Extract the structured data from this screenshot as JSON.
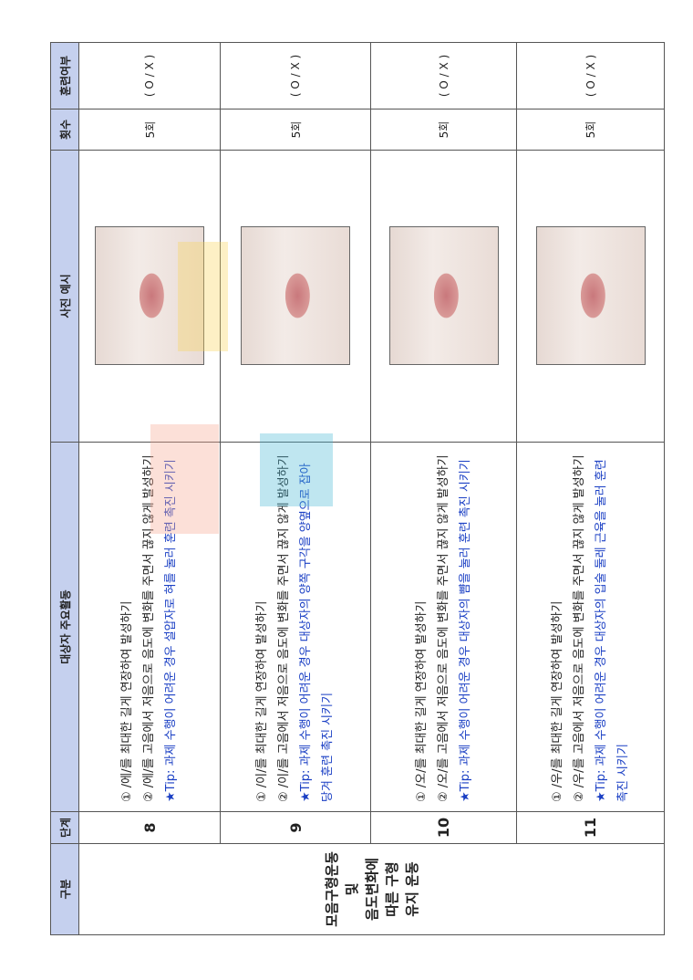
{
  "table": {
    "header": [
      "구분",
      "단계",
      "대상자 주요활동",
      "사진 예시",
      "횟수",
      "훈련여부"
    ],
    "category": [
      "모음구형운동",
      "및",
      "음도변화에",
      "따른 구형",
      "유지 운동"
    ],
    "rows": [
      {
        "step": "8",
        "lines": [
          "① /에/를 최대한 길게 연장하여 발성하기",
          "② /에/를 고음에서 저음으로 음도에 변화를 주면서 끊지 않게 발성하기"
        ],
        "tip": "★Tip: 과제 수행이 어려운 경우 설압자로 혀를 눌러 훈련 촉진 시키기",
        "count": "5회",
        "check": "( O / X )"
      },
      {
        "step": "9",
        "lines": [
          "① /이/를 최대한 길게 연장하여 발성하기",
          "② /이/를 고음에서 저음으로 음도에 변화를 주면서 끊지 않게 발성하기"
        ],
        "tip": "★Tip: 과제 수행이 어려운 경우 대상자의 양쪽 구각을 양옆으로 잡아 당겨 훈련 촉진 시키기",
        "count": "5회",
        "check": "( O / X )"
      },
      {
        "step": "10",
        "lines": [
          "① /오/를 최대한 길게 연장하여 발성하기",
          "② /오/를 고음에서 저음으로 음도에 변화를 주면서 끊지 않게 발성하기"
        ],
        "tip": "★Tip: 과제 수행이 어려운 경우 대상자의 뺨을 눌러 훈련 촉진 시키기",
        "count": "5회",
        "check": "( O / X )"
      },
      {
        "step": "11",
        "lines": [
          "① /우/를 최대한 길게 연장하여 발성하기",
          "② /우/를 고음에서 저음으로 음도에 변화를 주면서 끊지 않게 발성하기"
        ],
        "tip": "★Tip: 과제 수행이 어려운 경우 대상자의 입술 둘레 근육을 눌러 훈련 촉진 시키기",
        "count": "5회",
        "check": "( O / X )"
      }
    ]
  }
}
